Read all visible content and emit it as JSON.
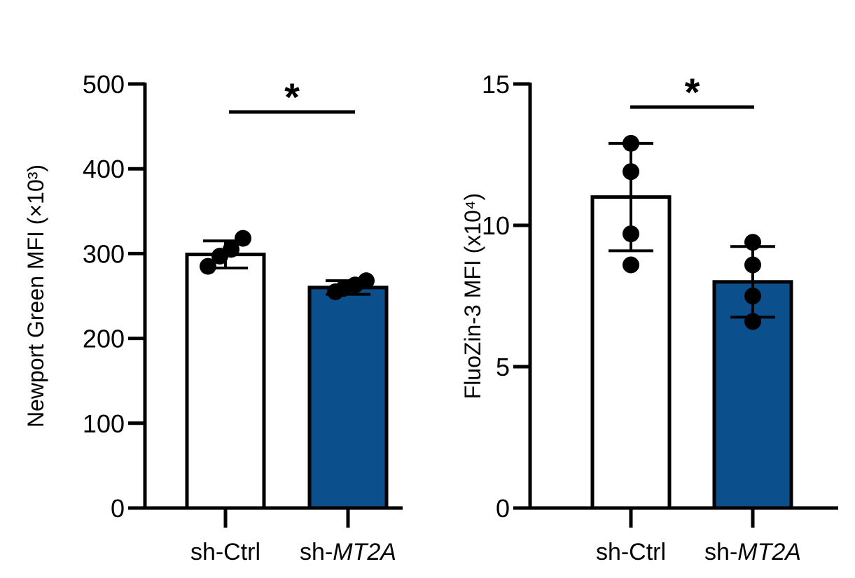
{
  "chart_data": [
    {
      "type": "bar",
      "categories": [
        "sh-Ctrl",
        "sh-MT2A"
      ],
      "category_parts": [
        {
          "prefix": "sh-Ctrl",
          "italic": ""
        },
        {
          "prefix": "sh-",
          "italic": "MT2A"
        }
      ],
      "values": [
        299,
        260
      ],
      "error": [
        16,
        8
      ],
      "points": [
        [
          285,
          297,
          305,
          318
        ],
        [
          255,
          259,
          263,
          268
        ]
      ],
      "ylabel": "Newport Green MFI (×10³)",
      "ylim": [
        0,
        500
      ],
      "yticks": [
        0,
        100,
        200,
        300,
        400,
        500
      ],
      "ytick_labels": [
        "0",
        "100",
        "200",
        "300",
        "400",
        "500"
      ],
      "bar_colors": [
        "#ffffff",
        "#0b4f8c"
      ],
      "significance": {
        "label": "*",
        "between": [
          0,
          1
        ]
      }
    },
    {
      "type": "bar",
      "categories": [
        "sh-Ctrl",
        "sh-MT2A"
      ],
      "category_parts": [
        {
          "prefix": "sh-Ctrl",
          "italic": ""
        },
        {
          "prefix": "sh-",
          "italic": "MT2A"
        }
      ],
      "values": [
        11.0,
        8.0
      ],
      "error": [
        1.9,
        1.25
      ],
      "points": [
        [
          8.6,
          9.7,
          11.9,
          12.9
        ],
        [
          6.6,
          7.5,
          8.6,
          9.4
        ]
      ],
      "ylabel": "FluoZin-3 MFI (x10⁴)",
      "ylim": [
        0,
        15
      ],
      "yticks": [
        0,
        5,
        10,
        15
      ],
      "ytick_labels": [
        "0",
        "5",
        "10",
        "15"
      ],
      "bar_colors": [
        "#ffffff",
        "#0b4f8c"
      ],
      "significance": {
        "label": "*",
        "between": [
          0,
          1
        ]
      }
    }
  ]
}
